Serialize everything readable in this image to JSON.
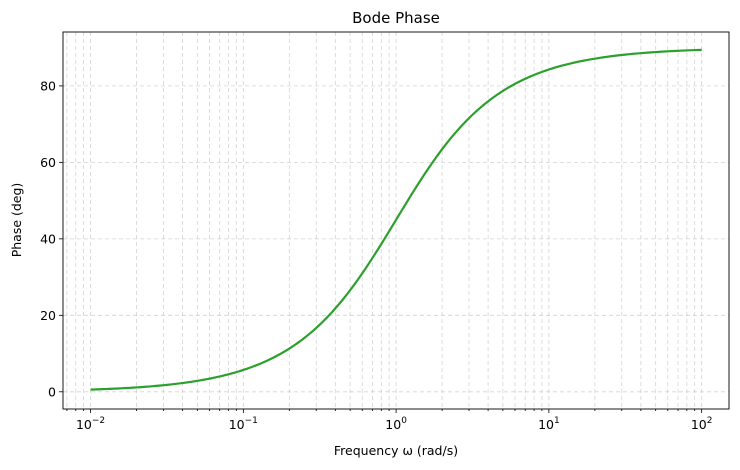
{
  "chart_data": {
    "type": "line",
    "title": "Bode Phase",
    "xlabel": "Frequency ω (rad/s)",
    "ylabel": "Phase (deg)",
    "xscale": "log",
    "xlim": [
      0.0066,
      151
    ],
    "ylim": [
      -4.5,
      94.1
    ],
    "xticks": [
      {
        "base": "10",
        "exp": "−2",
        "value": 0.01
      },
      {
        "base": "10",
        "exp": "−1",
        "value": 0.1
      },
      {
        "base": "10",
        "exp": "0",
        "value": 1
      },
      {
        "base": "10",
        "exp": "1",
        "value": 10
      },
      {
        "base": "10",
        "exp": "2",
        "value": 100
      }
    ],
    "yticks": [
      "0",
      "20",
      "40",
      "60",
      "80"
    ],
    "grid": true,
    "series": [
      {
        "color": "#2ca02c",
        "x": [
          0.01,
          0.02,
          0.03,
          0.05,
          0.1,
          0.2,
          0.3,
          0.5,
          0.7,
          1,
          1.5,
          2,
          3,
          5,
          7,
          10,
          20,
          30,
          50,
          100
        ],
        "y": [
          0.57,
          1.15,
          1.72,
          2.86,
          5.71,
          11.31,
          16.7,
          26.57,
          34.99,
          45.0,
          56.31,
          63.43,
          71.57,
          78.69,
          81.87,
          84.29,
          87.14,
          88.09,
          88.85,
          89.43
        ]
      }
    ]
  }
}
